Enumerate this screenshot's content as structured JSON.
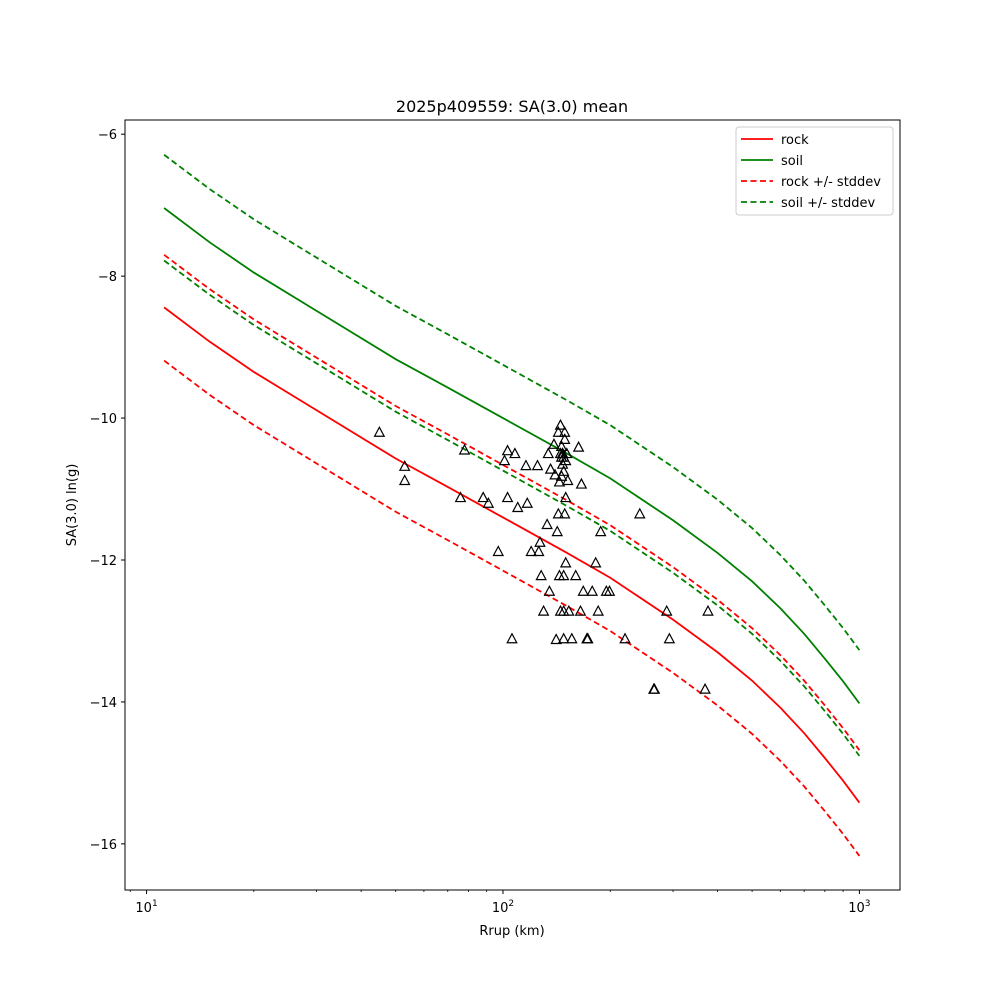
{
  "chart_data": {
    "type": "scatter",
    "title": "2025p409559: SA(3.0) mean",
    "xlabel": "Rrup (km)",
    "ylabel": "SA(3.0) ln(g)",
    "xscale": "log",
    "xlim": [
      8.7,
      1300
    ],
    "ylim": [
      -16.65,
      -5.8
    ],
    "grid": false,
    "legend_position": "top-right",
    "x_ticks": [
      {
        "value": 10,
        "base": "10",
        "exp": "1"
      },
      {
        "value": 100,
        "base": "10",
        "exp": "2"
      },
      {
        "value": 1000,
        "base": "10",
        "exp": "3"
      }
    ],
    "y_ticks": [
      {
        "value": -6,
        "label": "−6"
      },
      {
        "value": -8,
        "label": "−8"
      },
      {
        "value": -10,
        "label": "−10"
      },
      {
        "value": -12,
        "label": "−12"
      },
      {
        "value": -14,
        "label": "−14"
      },
      {
        "value": -16,
        "label": "−16"
      }
    ],
    "series": [
      {
        "name": "rock",
        "kind": "line",
        "dash": "solid",
        "color": "#ff0000",
        "x": [
          11.2,
          15,
          20,
          30,
          50,
          70,
          100,
          150,
          200,
          300,
          400,
          500,
          600,
          700,
          800,
          900,
          1000
        ],
        "y": [
          -8.44,
          -8.92,
          -9.35,
          -9.89,
          -10.57,
          -10.97,
          -11.4,
          -11.89,
          -12.25,
          -12.84,
          -13.3,
          -13.7,
          -14.08,
          -14.44,
          -14.79,
          -15.11,
          -15.42
        ]
      },
      {
        "name": "soil",
        "kind": "line",
        "dash": "solid",
        "color": "#008000",
        "x": [
          11.2,
          15,
          20,
          30,
          50,
          70,
          100,
          150,
          200,
          300,
          400,
          500,
          600,
          700,
          800,
          900,
          1000
        ],
        "y": [
          -7.04,
          -7.52,
          -7.95,
          -8.49,
          -9.17,
          -9.57,
          -10.0,
          -10.49,
          -10.85,
          -11.44,
          -11.9,
          -12.3,
          -12.68,
          -13.04,
          -13.39,
          -13.71,
          -14.02
        ]
      },
      {
        "name": "rock +/- stddev",
        "kind": "line",
        "dash": "dashed",
        "color": "#ff0000",
        "x": [
          11.2,
          15,
          20,
          30,
          50,
          70,
          100,
          150,
          200,
          300,
          400,
          500,
          600,
          700,
          800,
          900,
          1000
        ],
        "y": [
          -7.7,
          -8.18,
          -8.61,
          -9.15,
          -9.83,
          -10.23,
          -10.66,
          -11.15,
          -11.51,
          -12.1,
          -12.56,
          -12.96,
          -13.34,
          -13.7,
          -14.05,
          -14.37,
          -14.68
        ]
      },
      {
        "name": "",
        "kind": "line",
        "dash": "dashed",
        "color": "#ff0000",
        "x": [
          11.2,
          15,
          20,
          30,
          50,
          70,
          100,
          150,
          200,
          300,
          400,
          500,
          600,
          700,
          800,
          900,
          1000
        ],
        "y": [
          -9.19,
          -9.67,
          -10.1,
          -10.64,
          -11.32,
          -11.72,
          -12.15,
          -12.64,
          -13.0,
          -13.59,
          -14.05,
          -14.45,
          -14.83,
          -15.19,
          -15.54,
          -15.86,
          -16.17
        ]
      },
      {
        "name": "soil +/- stddev",
        "kind": "line",
        "dash": "dashed",
        "color": "#008000",
        "x": [
          11.2,
          15,
          20,
          30,
          50,
          70,
          100,
          150,
          200,
          300,
          400,
          500,
          600,
          700,
          800,
          900,
          1000
        ],
        "y": [
          -7.78,
          -8.26,
          -8.69,
          -9.23,
          -9.91,
          -10.31,
          -10.74,
          -11.23,
          -11.59,
          -12.18,
          -12.64,
          -13.04,
          -13.42,
          -13.78,
          -14.13,
          -14.45,
          -14.76
        ]
      },
      {
        "name": "",
        "kind": "line",
        "dash": "dashed",
        "color": "#008000",
        "x": [
          11.2,
          15,
          20,
          30,
          50,
          70,
          100,
          150,
          200,
          300,
          400,
          500,
          600,
          700,
          800,
          900,
          1000
        ],
        "y": [
          -6.29,
          -6.77,
          -7.2,
          -7.74,
          -8.42,
          -8.82,
          -9.25,
          -9.74,
          -10.1,
          -10.69,
          -11.15,
          -11.55,
          -11.93,
          -12.29,
          -12.64,
          -12.96,
          -13.27
        ]
      },
      {
        "name": "",
        "kind": "scatter",
        "marker": "triangle",
        "color": "#000000",
        "x": [
          45,
          53,
          53,
          76,
          78,
          88,
          91,
          97,
          101,
          103,
          103,
          106,
          108,
          110,
          116,
          117,
          120,
          125,
          126,
          127,
          128,
          130,
          133,
          134,
          135,
          136,
          139,
          140,
          141,
          142,
          143,
          143,
          144,
          144,
          145,
          145,
          145,
          146,
          146,
          146,
          147,
          147,
          147,
          148,
          148,
          148,
          148,
          148,
          149,
          149,
          149,
          150,
          150,
          150,
          151,
          152,
          153,
          156,
          160,
          163,
          165,
          166,
          168,
          172,
          173,
          178,
          182,
          185,
          188,
          195,
          199,
          220,
          242,
          265,
          266,
          288,
          293,
          369,
          376
        ],
        "y": [
          -10.2,
          -10.68,
          -10.88,
          -11.12,
          -10.45,
          -11.12,
          -11.2,
          -11.88,
          -10.6,
          -10.46,
          -11.12,
          -13.11,
          -10.5,
          -11.26,
          -10.67,
          -11.2,
          -11.88,
          -10.67,
          -11.88,
          -11.75,
          -12.22,
          -12.72,
          -11.5,
          -10.5,
          -12.44,
          -10.72,
          -10.37,
          -10.8,
          -13.12,
          -11.6,
          -10.2,
          -11.35,
          -10.9,
          -12.22,
          -10.5,
          -10.1,
          -12.72,
          -10.82,
          -10.4,
          -10.55,
          -10.65,
          -10.5,
          -10.5,
          -12.72,
          -13.11,
          -12.22,
          -10.75,
          -10.55,
          -10.3,
          -11.35,
          -10.2,
          -12.04,
          -11.12,
          -10.6,
          -10.5,
          -10.88,
          -12.72,
          -13.11,
          -12.22,
          -10.41,
          -12.72,
          -10.93,
          -12.44,
          -13.11,
          -13.11,
          -12.44,
          -12.04,
          -12.72,
          -11.6,
          -12.44,
          -12.44,
          -13.11,
          -11.35,
          -13.82,
          -13.82,
          -12.72,
          -13.11,
          -13.82,
          -12.72
        ]
      }
    ]
  }
}
